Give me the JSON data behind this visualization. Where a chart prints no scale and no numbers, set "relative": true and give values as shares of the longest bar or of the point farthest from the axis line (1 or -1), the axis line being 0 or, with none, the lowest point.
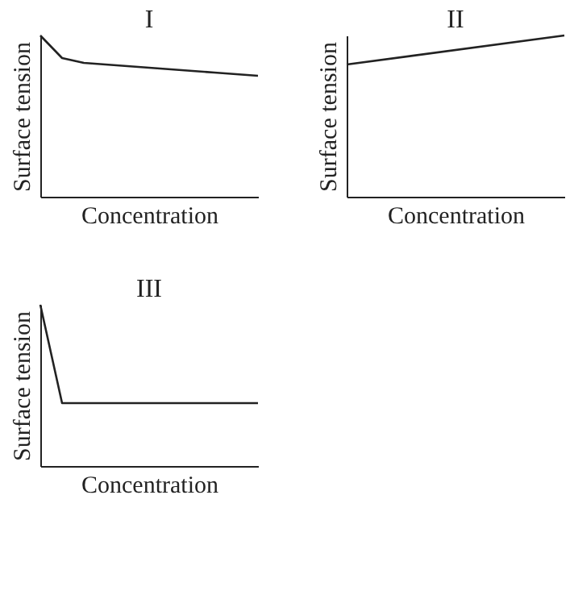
{
  "chart_data": [
    {
      "type": "line",
      "relative": true,
      "xlabel": "Concentration",
      "ylabel": "Surface tension",
      "annotations": [
        "I"
      ],
      "categories": [
        null,
        null,
        null,
        null,
        null,
        null,
        null,
        null,
        null,
        null,
        null
      ],
      "series": [
        {
          "color": "#222222",
          "values": [
            1.0,
            0.86,
            0.83,
            0.82,
            0.81,
            0.8,
            0.79,
            0.78,
            0.77,
            0.76,
            0.75
          ]
        }
      ]
    },
    {
      "type": "line",
      "relative": true,
      "xlabel": "Concentration",
      "ylabel": "Surface tension",
      "annotations": [
        "II"
      ],
      "categories": [
        null,
        null
      ],
      "series": [
        {
          "color": "#222222",
          "values": [
            0.82,
            1.0
          ]
        }
      ]
    },
    {
      "type": "line",
      "relative": true,
      "xlabel": "Concentration",
      "ylabel": "Surface tension",
      "annotations": [
        "III"
      ],
      "categories": [
        null,
        null,
        null,
        null,
        null,
        null,
        null,
        null,
        null,
        null,
        null
      ],
      "series": [
        {
          "color": "#222222",
          "values": [
            1.0,
            0.39,
            0.39,
            0.39,
            0.39,
            0.39,
            0.39,
            0.39,
            0.39,
            0.39,
            0.39
          ]
        }
      ]
    }
  ]
}
